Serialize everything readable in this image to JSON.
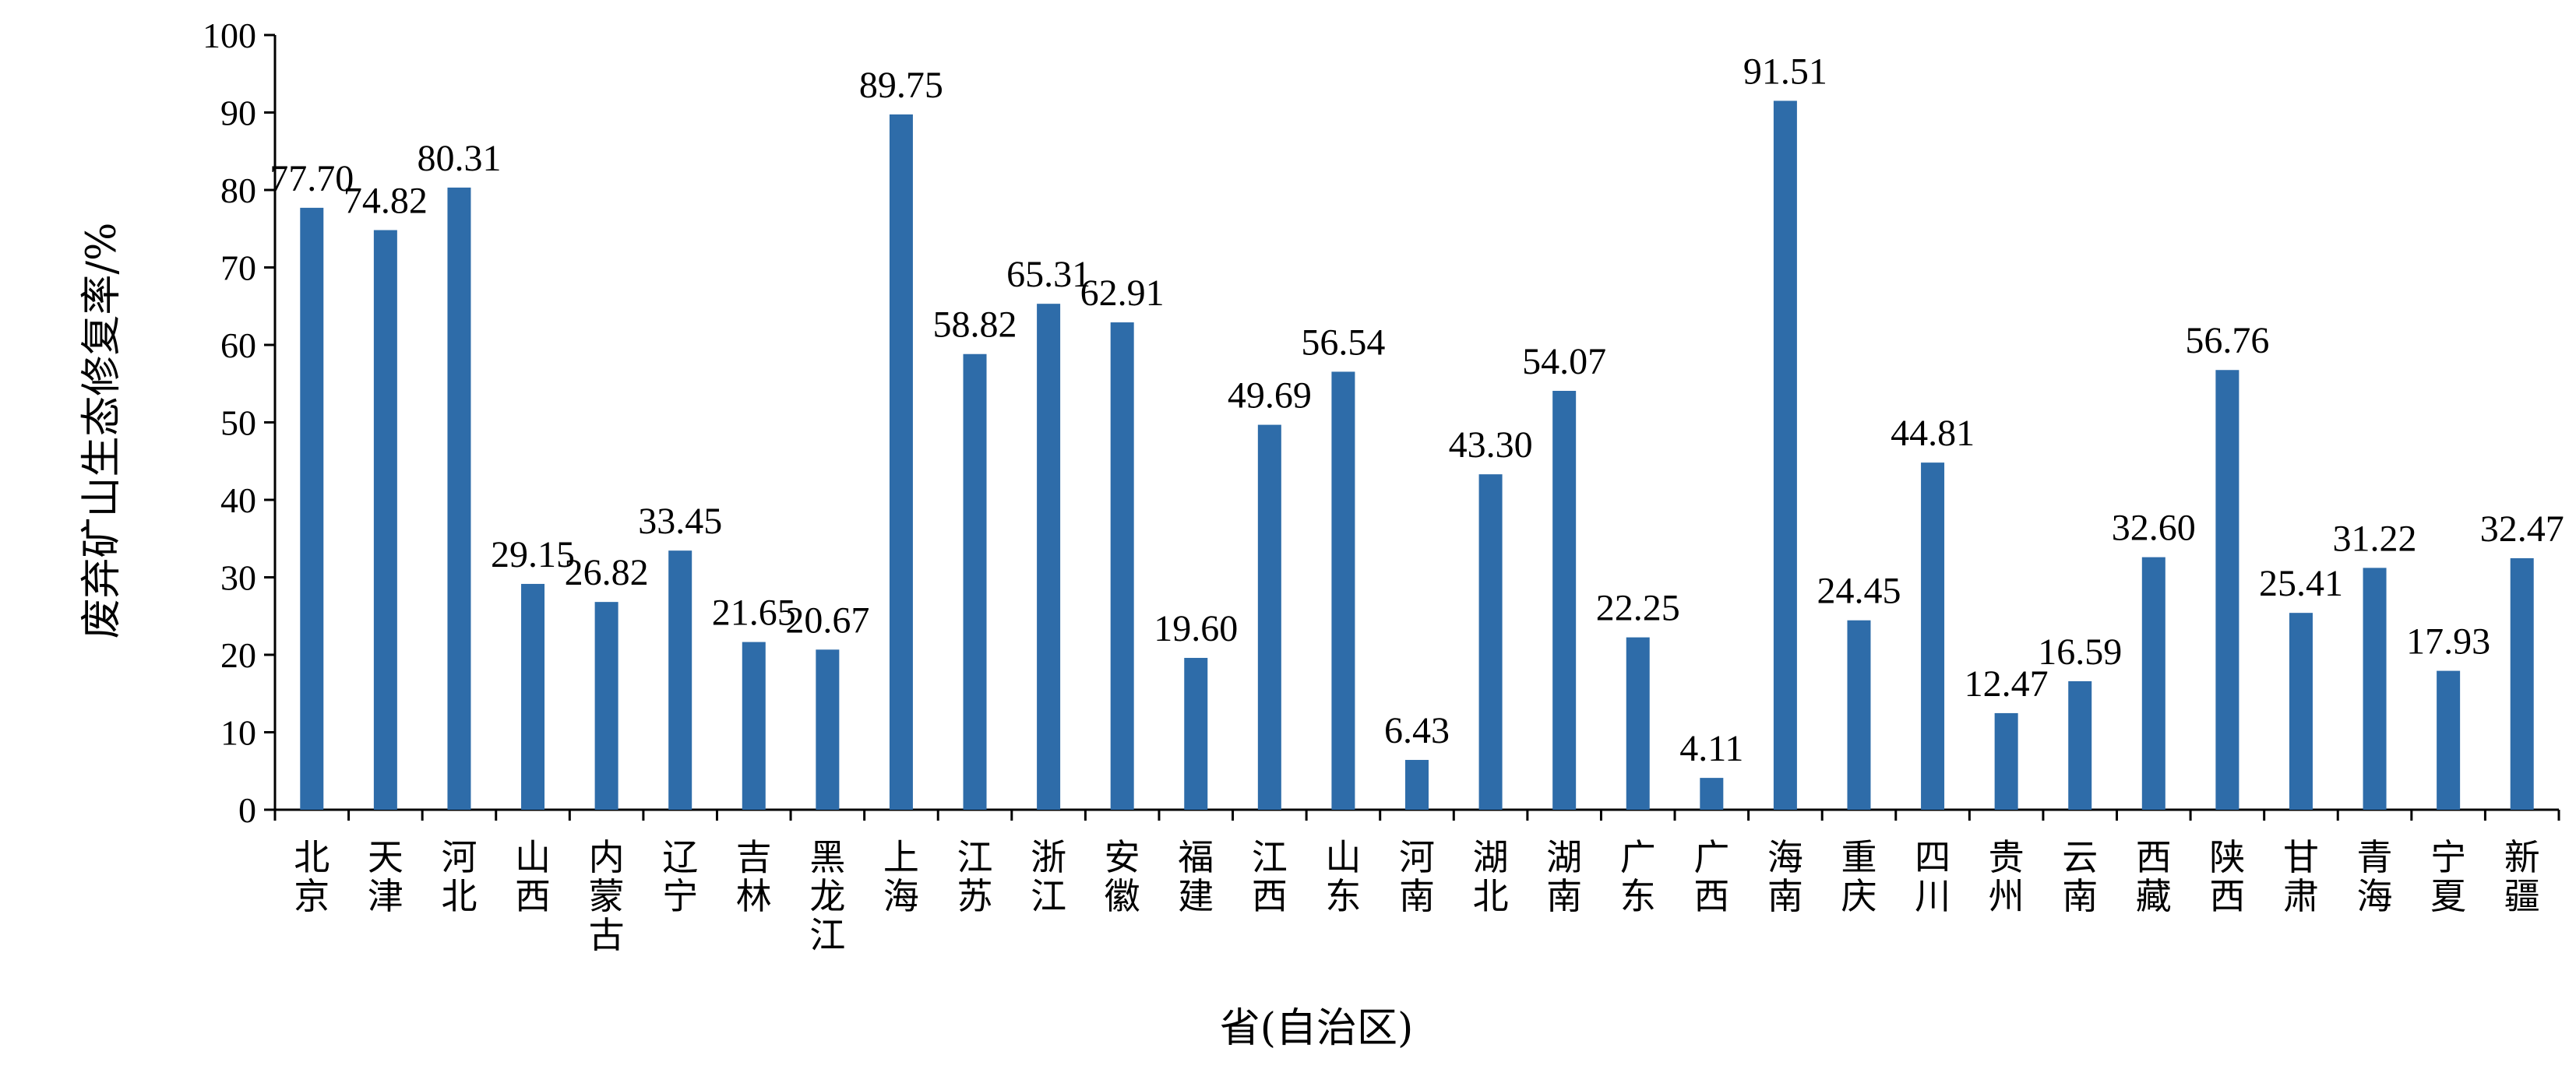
{
  "chart_data": {
    "type": "bar",
    "title": "",
    "xlabel": "省(自治区)",
    "ylabel": "废弃矿山生态修复率/%",
    "ylim": [
      0,
      100
    ],
    "yticks": [
      0,
      10,
      20,
      30,
      40,
      50,
      60,
      70,
      80,
      90,
      100
    ],
    "yticks_text": [
      "0",
      "10",
      "20",
      "30",
      "40",
      "50",
      "60",
      "70",
      "80",
      "90",
      "100"
    ],
    "bar_color": "#2e6ca9",
    "grid": false,
    "legend": "none",
    "categories": [
      "北京",
      "天津",
      "河北",
      "山西",
      "内蒙古",
      "辽宁",
      "吉林",
      "黑龙江",
      "上海",
      "江苏",
      "浙江",
      "安徽",
      "福建",
      "江西",
      "山东",
      "河南",
      "湖北",
      "湖南",
      "广东",
      "广西",
      "海南",
      "重庆",
      "四川",
      "贵州",
      "云南",
      "西藏",
      "陕西",
      "甘肃",
      "青海",
      "宁夏",
      "新疆"
    ],
    "values": [
      77.7,
      74.82,
      80.31,
      29.15,
      26.82,
      33.45,
      21.65,
      20.67,
      89.75,
      58.82,
      65.31,
      62.91,
      19.6,
      49.69,
      56.54,
      6.43,
      43.3,
      54.07,
      22.25,
      4.11,
      91.51,
      24.45,
      44.81,
      12.47,
      16.59,
      32.6,
      56.76,
      25.41,
      31.22,
      17.93,
      32.47
    ],
    "value_labels": [
      "77.70",
      "74.82",
      "80.31",
      "29.15",
      "26.82",
      "33.45",
      "21.65",
      "20.67",
      "89.75",
      "58.82",
      "65.31",
      "62.91",
      "19.60",
      "49.69",
      "56.54",
      "6.43",
      "43.30",
      "54.07",
      "22.25",
      "4.11",
      "91.51",
      "24.45",
      "44.81",
      "12.47",
      "16.59",
      "32.60",
      "56.76",
      "25.41",
      "31.22",
      "17.93",
      "32.47"
    ]
  }
}
